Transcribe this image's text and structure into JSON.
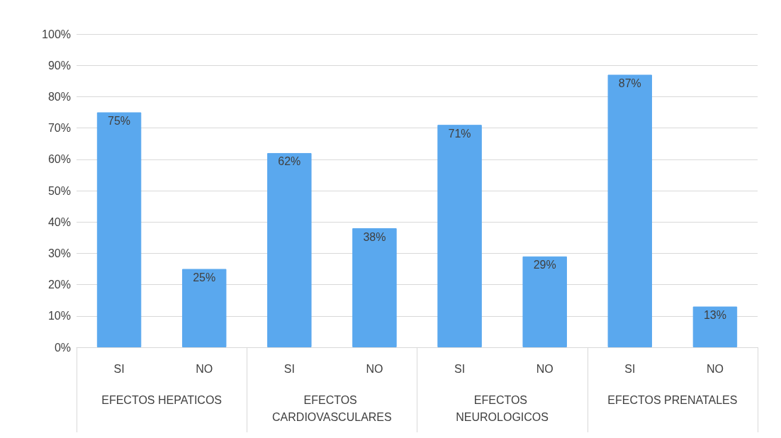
{
  "chart_data": {
    "type": "bar",
    "categories": [
      "SI",
      "NO",
      "SI",
      "NO",
      "SI",
      "NO",
      "SI",
      "NO"
    ],
    "annotations": [
      "EFECTOS HEPATICOS",
      "EFECTOS CARDIOVASCULARES",
      "EFECTOS NEUROLOGICOS",
      "EFECTOS PRENATALES"
    ],
    "values": [
      75,
      25,
      62,
      38,
      71,
      29,
      87,
      13
    ],
    "value_labels": [
      "75%",
      "25%",
      "62%",
      "38%",
      "71%",
      "29%",
      "87%",
      "13%"
    ],
    "color": "#5aa8ee",
    "ylim": [
      0,
      100
    ],
    "yticks": [
      {
        "value": 0,
        "label": "0%"
      },
      {
        "value": 10,
        "label": "10%"
      },
      {
        "value": 20,
        "label": "20%"
      },
      {
        "value": 30,
        "label": "30%"
      },
      {
        "value": 40,
        "label": "40%"
      },
      {
        "value": 50,
        "label": "50%"
      },
      {
        "value": 60,
        "label": "60%"
      },
      {
        "value": 70,
        "label": "70%"
      },
      {
        "value": 80,
        "label": "80%"
      },
      {
        "value": 90,
        "label": "90%"
      },
      {
        "value": 100,
        "label": "100%"
      }
    ],
    "grid": "y"
  }
}
